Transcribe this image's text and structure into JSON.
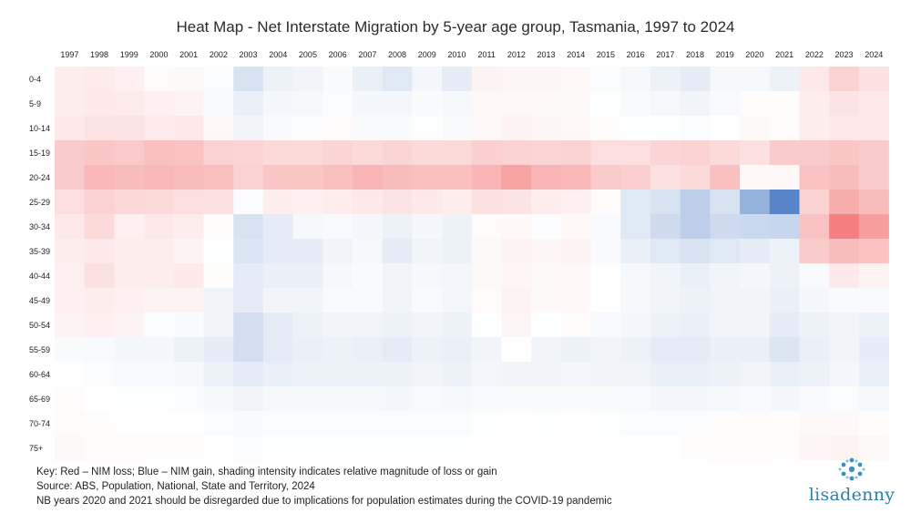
{
  "title": "Heat Map -  Net Interstate Migration by 5-year age group, Tasmania, 1997 to 2024",
  "footer": {
    "key": "Key: Red – NIM loss; Blue – NIM gain, shading intensity indicates relative magnitude of loss or gain",
    "source": "Source: ABS, Population, National, State and Territory, 2024",
    "note": "NB years 2020 and 2021 should be disregarded due to implications for population estimates during the COVID-19 pandemic"
  },
  "brand": {
    "name": "lisadenny",
    "color": "#2f7fa6"
  },
  "chart_data": {
    "type": "heatmap",
    "title": "Heat Map -  Net Interstate Migration by 5-year age group, Tasmania, 1997 to 2024",
    "scale_note": "relative intensity: negative = NIM loss (red), positive = NIM gain (blue), range -1 to 1",
    "colors": {
      "loss": "#f26a6a",
      "gain": "#4f7fc6",
      "neutral": "#ffffff"
    },
    "x": [
      "1997",
      "1998",
      "1999",
      "2000",
      "2001",
      "2002",
      "2003",
      "2004",
      "2005",
      "2006",
      "2007",
      "2008",
      "2009",
      "2010",
      "2011",
      "2012",
      "2013",
      "2014",
      "2015",
      "2016",
      "2017",
      "2018",
      "2019",
      "2020",
      "2021",
      "2022",
      "2023",
      "2024"
    ],
    "y": [
      "0-4",
      "5-9",
      "10-14",
      "15-19",
      "20-24",
      "25-29",
      "30-34",
      "35-39",
      "40-44",
      "45-49",
      "50-54",
      "55-59",
      "60-64",
      "65-69",
      "70-74",
      "75+"
    ],
    "values": [
      [
        -0.12,
        -0.14,
        -0.1,
        -0.03,
        -0.04,
        0.02,
        0.22,
        0.1,
        0.08,
        0.03,
        0.12,
        0.18,
        0.06,
        0.15,
        -0.08,
        -0.06,
        -0.07,
        -0.05,
        0.02,
        0.05,
        0.1,
        0.15,
        0.05,
        0.05,
        0.1,
        -0.15,
        -0.3,
        -0.2
      ],
      [
        -0.12,
        -0.15,
        -0.14,
        -0.1,
        -0.08,
        0.03,
        0.12,
        0.06,
        0.05,
        0.02,
        0.06,
        0.06,
        0.03,
        0.05,
        -0.05,
        -0.05,
        -0.04,
        -0.04,
        0.01,
        0.03,
        0.05,
        0.08,
        0.04,
        -0.02,
        -0.02,
        -0.12,
        -0.18,
        -0.15
      ],
      [
        -0.15,
        -0.18,
        -0.18,
        -0.14,
        -0.15,
        -0.05,
        0.08,
        0.03,
        0.02,
        -0.03,
        0.03,
        0.03,
        0.01,
        0.03,
        -0.05,
        -0.08,
        -0.06,
        -0.05,
        -0.02,
        0.01,
        0.01,
        0.02,
        0.0,
        -0.04,
        -0.02,
        -0.12,
        -0.15,
        -0.15
      ],
      [
        -0.35,
        -0.38,
        -0.36,
        -0.42,
        -0.4,
        -0.3,
        -0.28,
        -0.25,
        -0.25,
        -0.28,
        -0.25,
        -0.28,
        -0.25,
        -0.25,
        -0.32,
        -0.3,
        -0.28,
        -0.3,
        -0.22,
        -0.22,
        -0.28,
        -0.3,
        -0.25,
        -0.2,
        -0.35,
        -0.35,
        -0.38,
        -0.35
      ],
      [
        -0.35,
        -0.48,
        -0.45,
        -0.48,
        -0.45,
        -0.42,
        -0.3,
        -0.38,
        -0.38,
        -0.42,
        -0.5,
        -0.45,
        -0.42,
        -0.42,
        -0.5,
        -0.62,
        -0.5,
        -0.48,
        -0.35,
        -0.32,
        -0.2,
        -0.25,
        -0.42,
        -0.05,
        -0.05,
        -0.4,
        -0.45,
        -0.35
      ],
      [
        -0.22,
        -0.3,
        -0.26,
        -0.25,
        -0.22,
        -0.2,
        0.02,
        -0.12,
        -0.1,
        -0.12,
        -0.15,
        -0.18,
        -0.15,
        -0.12,
        -0.2,
        -0.18,
        -0.12,
        -0.1,
        -0.03,
        0.18,
        0.22,
        0.38,
        0.22,
        0.6,
        0.95,
        -0.3,
        -0.55,
        -0.45
      ],
      [
        -0.15,
        -0.25,
        -0.1,
        -0.15,
        -0.12,
        -0.02,
        0.22,
        0.15,
        0.05,
        0.04,
        0.06,
        0.1,
        0.06,
        0.1,
        -0.03,
        -0.05,
        0.02,
        -0.05,
        0.04,
        0.18,
        0.28,
        0.38,
        0.28,
        0.3,
        0.32,
        -0.4,
        -0.85,
        -0.65
      ],
      [
        -0.12,
        -0.15,
        -0.12,
        -0.12,
        -0.08,
        0.01,
        0.2,
        0.15,
        0.15,
        0.08,
        0.05,
        0.15,
        0.08,
        0.1,
        -0.04,
        -0.08,
        -0.06,
        -0.08,
        0.03,
        0.12,
        0.18,
        0.22,
        0.18,
        0.15,
        0.1,
        -0.35,
        -0.45,
        -0.4
      ],
      [
        -0.1,
        -0.2,
        -0.12,
        -0.12,
        -0.15,
        -0.02,
        0.15,
        0.12,
        0.12,
        0.05,
        0.03,
        0.08,
        0.05,
        0.07,
        -0.04,
        -0.06,
        -0.04,
        -0.05,
        0.0,
        0.05,
        0.08,
        0.12,
        0.08,
        0.06,
        0.1,
        0.04,
        -0.15,
        -0.08
      ],
      [
        -0.1,
        -0.12,
        -0.1,
        -0.08,
        -0.08,
        0.08,
        0.15,
        0.08,
        0.08,
        0.04,
        0.04,
        0.08,
        0.04,
        0.07,
        -0.03,
        -0.08,
        -0.04,
        -0.05,
        0.0,
        0.05,
        0.08,
        0.1,
        0.08,
        0.08,
        0.12,
        0.06,
        0.04,
        0.04
      ],
      [
        -0.08,
        -0.1,
        -0.08,
        0.02,
        0.03,
        0.08,
        0.25,
        0.15,
        0.1,
        0.08,
        0.08,
        0.1,
        0.08,
        0.1,
        0.01,
        -0.06,
        0.01,
        -0.02,
        0.04,
        0.06,
        0.1,
        0.12,
        0.08,
        0.08,
        0.15,
        0.1,
        0.08,
        0.1
      ],
      [
        0.03,
        0.04,
        0.06,
        0.06,
        0.1,
        0.14,
        0.25,
        0.15,
        0.12,
        0.1,
        0.12,
        0.15,
        0.1,
        0.12,
        0.08,
        0.0,
        0.08,
        0.1,
        0.08,
        0.1,
        0.15,
        0.15,
        0.12,
        0.12,
        0.2,
        0.12,
        0.08,
        0.14
      ],
      [
        0.0,
        0.02,
        0.04,
        0.04,
        0.05,
        0.1,
        0.15,
        0.12,
        0.1,
        0.1,
        0.1,
        0.1,
        0.08,
        0.1,
        0.07,
        0.08,
        0.08,
        0.07,
        0.08,
        0.08,
        0.12,
        0.12,
        0.1,
        0.08,
        0.12,
        0.1,
        0.06,
        0.12
      ],
      [
        -0.02,
        0.0,
        0.01,
        0.01,
        0.02,
        0.05,
        0.08,
        0.05,
        0.05,
        0.05,
        0.05,
        0.06,
        0.04,
        0.05,
        0.04,
        0.03,
        0.03,
        0.03,
        0.03,
        0.04,
        0.06,
        0.06,
        0.05,
        0.04,
        0.06,
        0.04,
        0.02,
        0.05
      ],
      [
        -0.03,
        -0.02,
        -0.01,
        0.0,
        0.0,
        0.02,
        0.03,
        0.02,
        0.02,
        0.02,
        0.02,
        0.02,
        0.02,
        0.02,
        0.01,
        0.0,
        0.01,
        0.0,
        0.01,
        0.02,
        0.02,
        0.02,
        -0.02,
        -0.03,
        -0.02,
        -0.04,
        -0.05,
        -0.02
      ],
      [
        -0.04,
        -0.03,
        -0.03,
        -0.02,
        -0.02,
        0.0,
        0.02,
        0.01,
        0.01,
        0.01,
        0.01,
        0.01,
        0.01,
        0.01,
        0.0,
        -0.01,
        0.0,
        0.0,
        -0.01,
        0.0,
        0.0,
        -0.02,
        -0.03,
        -0.03,
        -0.02,
        -0.06,
        -0.08,
        -0.04
      ]
    ]
  }
}
